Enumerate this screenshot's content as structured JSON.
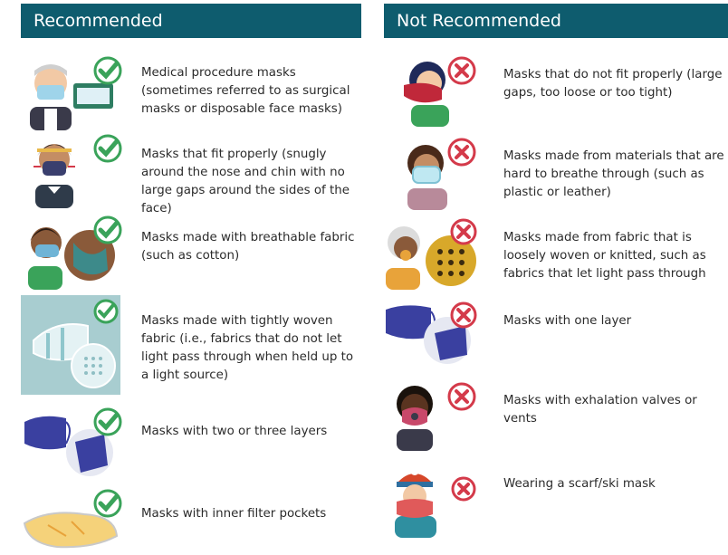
{
  "recommended": {
    "title": "Recommended",
    "items": [
      "Medical procedure masks (sometimes referred to as surgical masks or disposable face masks)",
      "Masks that fit properly (snugly around the nose and chin with no large gaps around the sides of the face)",
      "Masks made with breathable fabric (such as cotton)",
      "Masks made with tightly woven fabric (i.e., fabrics that do not let light pass through when held up to a light source)",
      "Masks with two or three layers",
      "Masks with inner filter pockets"
    ]
  },
  "not_recommended": {
    "title": "Not Recommended",
    "items": [
      "Masks that do not fit properly (large gaps, too loose or too tight)",
      "Masks made from materials that are hard to breathe through (such as plastic or leather)",
      "Masks made from fabric that is loosely woven or knitted, such as fabrics that let light pass through",
      "Masks with one layer",
      "Masks with exhalation valves or vents",
      "Wearing a scarf/ski mask"
    ]
  },
  "colors": {
    "header_bg": "#0e5c6e",
    "check_green": "#3aa35a",
    "cross_red": "#d43a4a"
  },
  "icons": {
    "recommended": "check-circle-icon",
    "not_recommended": "x-circle-icon"
  }
}
